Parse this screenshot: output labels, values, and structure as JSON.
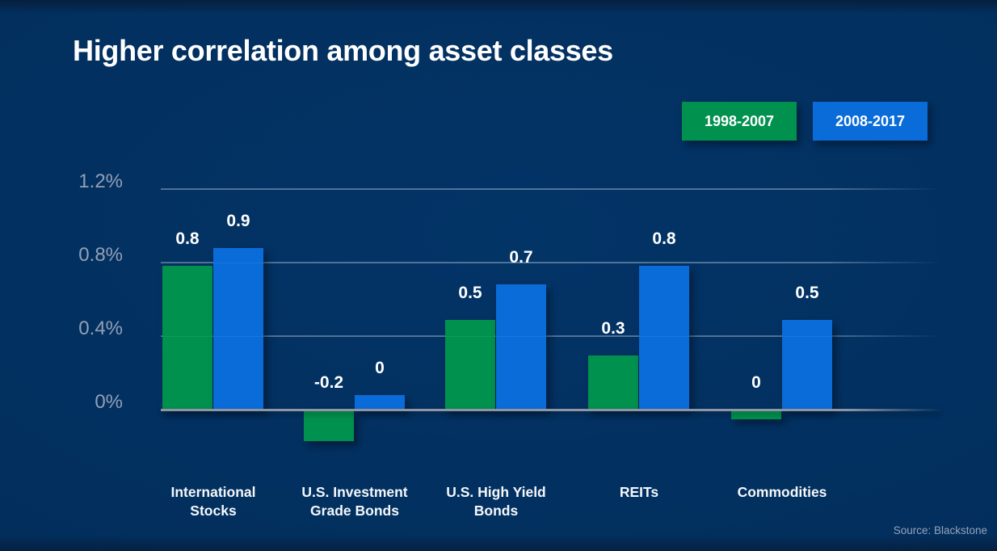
{
  "title": "Higher correlation among asset classes",
  "source": "Source: Blackstone",
  "legend": [
    {
      "label": "1998-2007",
      "color": "#00914e"
    },
    {
      "label": "2008-2017",
      "color": "#0a6cd9"
    }
  ],
  "colors": {
    "background": "#022e5c",
    "green": "#00914e",
    "blue": "#0a6cd9",
    "gridline": "rgba(190,205,225,0.38)",
    "zero_line": "#8e96a6",
    "axis_label": "#93a0b5",
    "value_label": "#ffffff"
  },
  "chart_data": {
    "type": "bar",
    "title": "Higher correlation among asset classes",
    "categories": [
      "International Stocks",
      "U.S. Investment Grade Bonds",
      "U.S. High Yield Bonds",
      "REITs",
      "Commodities"
    ],
    "category_lines": [
      [
        "International",
        "Stocks"
      ],
      [
        "U.S. Investment",
        "Grade Bonds"
      ],
      [
        "U.S. High Yield",
        "Bonds"
      ],
      [
        "REITs"
      ],
      [
        "Commodities"
      ]
    ],
    "series": [
      {
        "name": "1998-2007",
        "color": "#00914e",
        "values": [
          0.8,
          -0.2,
          0.5,
          0.3,
          0
        ],
        "labels": [
          "0.8",
          "-0.2",
          "0.5",
          "0.3",
          "0"
        ],
        "zero_stub": {
          "4": "down"
        }
      },
      {
        "name": "2008-2017",
        "color": "#0a6cd9",
        "values": [
          0.9,
          0,
          0.7,
          0.8,
          0.5
        ],
        "labels": [
          "0.9",
          "0",
          "0.7",
          "0.8",
          "0.5"
        ],
        "zero_stub": {
          "1": "up"
        }
      }
    ],
    "y_ticks": [
      {
        "label": "1.2%",
        "value": 1.2
      },
      {
        "label": "0.8%",
        "value": 0.8
      },
      {
        "label": "0.4%",
        "value": 0.4
      },
      {
        "label": "0%",
        "value": 0
      }
    ],
    "ylim": [
      -0.25,
      1.3
    ],
    "xlabel": "",
    "ylabel": "",
    "grid": true,
    "legend_position": "top-right"
  }
}
